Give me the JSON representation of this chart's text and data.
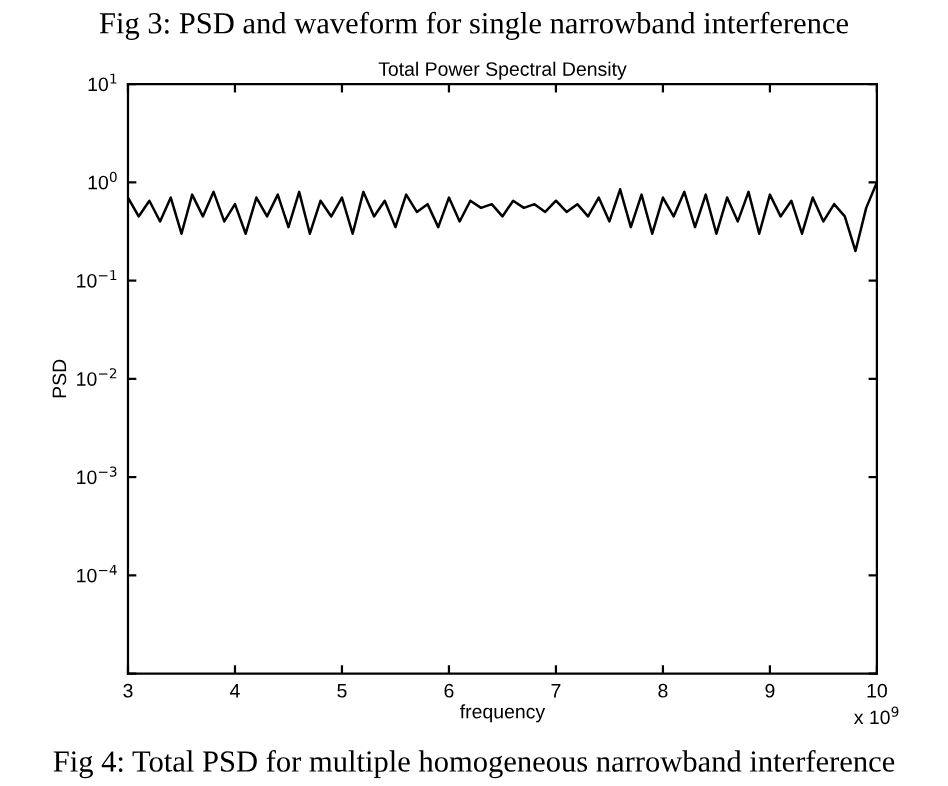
{
  "chart_data": {
    "type": "line",
    "title": "Total Power Spectral Density",
    "xlabel": "frequency",
    "ylabel": "PSD",
    "annotations": [
      "Fig 3: PSD and waveform for single narrowband interference",
      "Fig 4: Total PSD for multiple homogeneous narrowband interference",
      "x 10$^{9}$"
    ],
    "x": [
      3.0,
      3.1,
      3.2,
      3.3,
      3.4,
      3.5,
      3.6,
      3.7,
      3.8,
      3.9,
      4.0,
      4.1,
      4.2,
      4.3,
      4.4,
      4.5,
      4.6,
      4.7,
      4.8,
      4.9,
      5.0,
      5.1,
      5.2,
      5.3,
      5.4,
      5.5,
      5.6,
      5.7,
      5.8,
      5.9,
      6.0,
      6.1,
      6.2,
      6.3,
      6.4,
      6.5,
      6.6,
      6.7,
      6.8,
      6.9,
      7.0,
      7.1,
      7.2,
      7.3,
      7.4,
      7.5,
      7.6,
      7.7,
      7.8,
      7.9,
      8.0,
      8.1,
      8.2,
      8.3,
      8.4,
      8.5,
      8.6,
      8.7,
      8.8,
      8.9,
      9.0,
      9.1,
      9.2,
      9.3,
      9.4,
      9.5,
      9.6,
      9.7,
      9.8,
      9.9,
      10.0
    ],
    "series": [
      {
        "color": "#000000",
        "values": [
          0.7,
          0.45,
          0.65,
          0.4,
          0.7,
          0.3,
          0.75,
          0.45,
          0.8,
          0.4,
          0.6,
          0.3,
          0.7,
          0.45,
          0.75,
          0.35,
          0.8,
          0.3,
          0.65,
          0.45,
          0.7,
          0.3,
          0.8,
          0.45,
          0.65,
          0.35,
          0.75,
          0.5,
          0.6,
          0.35,
          0.7,
          0.4,
          0.65,
          0.55,
          0.6,
          0.45,
          0.65,
          0.55,
          0.6,
          0.5,
          0.65,
          0.5,
          0.6,
          0.45,
          0.7,
          0.4,
          0.85,
          0.35,
          0.75,
          0.3,
          0.7,
          0.45,
          0.8,
          0.35,
          0.75,
          0.3,
          0.7,
          0.4,
          0.8,
          0.3,
          0.75,
          0.45,
          0.65,
          0.3,
          0.7,
          0.4,
          0.6,
          0.45,
          0.2,
          0.55,
          1.0
        ]
      }
    ],
    "xlim": [
      3,
      10
    ],
    "xticks": [
      3,
      4,
      5,
      6,
      7,
      8,
      9,
      10
    ],
    "log": "y",
    "ylim": [
      1e-05,
      10
    ],
    "yticks": [
      {
        "value": 1e-05,
        "label": null
      },
      {
        "value": 0.0001,
        "label": "10$^{−4}$"
      },
      {
        "value": 0.001,
        "label": "10$^{−3}$"
      },
      {
        "value": 0.01,
        "label": "10$^{−2}$"
      },
      {
        "value": 0.1,
        "label": "10$^{−1}$"
      },
      {
        "value": 1,
        "label": "10$^{0}$"
      },
      {
        "value": 10,
        "label": "10$^{1}$"
      }
    ],
    "grid": false,
    "legend": false,
    "marker": "none",
    "line_style": "solid"
  }
}
